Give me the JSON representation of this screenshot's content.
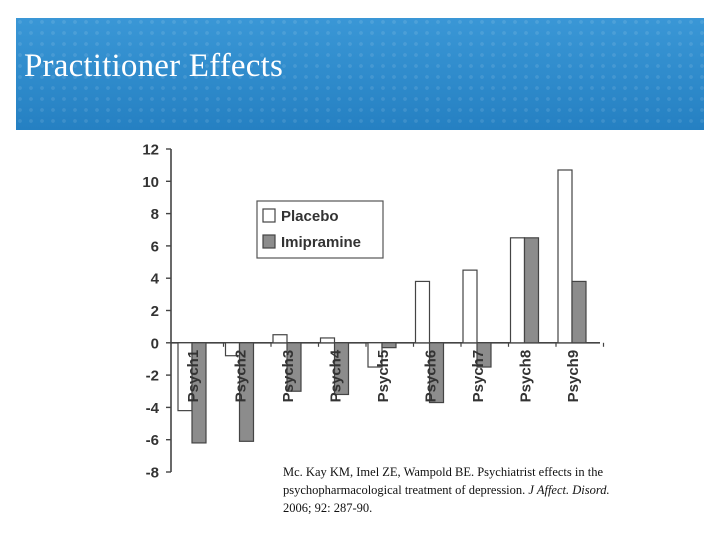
{
  "header": {
    "title": "Practitioner Effects"
  },
  "chart_data": {
    "type": "bar",
    "categories": [
      "Psych1",
      "Psych2",
      "Psych3",
      "Psych4",
      "Psych5",
      "Psych6",
      "Psych7",
      "Psych8",
      "Psych9"
    ],
    "series": [
      {
        "name": "Placebo",
        "color": "#ffffff",
        "values": [
          -4.2,
          -0.8,
          0.5,
          0.3,
          -1.5,
          3.8,
          4.5,
          6.5,
          10.7
        ]
      },
      {
        "name": "Imipramine",
        "color": "#8c8c8c",
        "values": [
          -6.2,
          -6.1,
          -3.0,
          -3.2,
          -0.3,
          -3.7,
          -1.5,
          6.5,
          3.8
        ]
      }
    ],
    "yticks": [
      "12",
      "10",
      "8",
      "6",
      "4",
      "2",
      "0",
      "-2",
      "-4",
      "-6",
      "-8"
    ],
    "ylim": [
      -8,
      12
    ],
    "legend": "top-center",
    "grid": false
  },
  "citation": {
    "line1": "Mc. Kay KM, Imel ZE, Wampold BE. Psychiatrist effects in the",
    "line2_plain": "psychopharmacological treatment of depression. ",
    "line2_italic": "J Affect. Disord.",
    "line3": "2006; 92: 287-90."
  }
}
